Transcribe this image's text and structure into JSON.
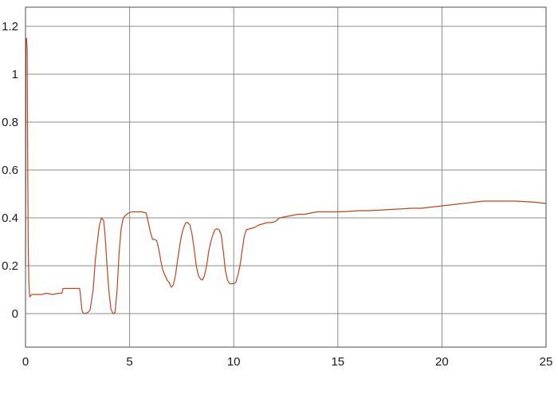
{
  "chart_data": {
    "type": "line",
    "title": "",
    "xlabel": "",
    "ylabel": "",
    "xlim": [
      0,
      25
    ],
    "ylim": [
      -0.14,
      1.28
    ],
    "grid": true,
    "legend": "none",
    "x_ticks": [
      0,
      5,
      10,
      15,
      20,
      25
    ],
    "x_tick_labels": [
      "0",
      "5",
      "10",
      "15",
      "20",
      "25"
    ],
    "y_ticks": [
      0,
      0.2,
      0.4,
      0.6,
      0.8,
      1,
      1.2
    ],
    "y_tick_labels": [
      "0",
      "0.2",
      "0.4",
      "0.6",
      "0.8",
      "1",
      "1.2"
    ],
    "series": [
      {
        "color": "#c0461b",
        "x": [
          0,
          0.02,
          0.05,
          0.08,
          0.1,
          0.13,
          0.16,
          0.2,
          0.3,
          0.5,
          0.8,
          1.0,
          1.3,
          1.6,
          1.75,
          1.8,
          2.0,
          2.3,
          2.6,
          2.65,
          2.7,
          2.75,
          2.85,
          3.0,
          3.1,
          3.25,
          3.35,
          3.45,
          3.55,
          3.65,
          3.75,
          3.82,
          3.9,
          4.0,
          4.1,
          4.2,
          4.3,
          4.4,
          4.5,
          4.6,
          4.7,
          4.8,
          4.95,
          5.1,
          5.25,
          5.4,
          5.6,
          5.8,
          6.0,
          6.1,
          6.2,
          6.3,
          6.4,
          6.5,
          6.6,
          6.7,
          6.8,
          6.9,
          7.0,
          7.1,
          7.2,
          7.3,
          7.4,
          7.5,
          7.6,
          7.7,
          7.8,
          7.9,
          8.0,
          8.1,
          8.2,
          8.3,
          8.4,
          8.5,
          8.6,
          8.7,
          8.8,
          8.9,
          9.0,
          9.1,
          9.2,
          9.3,
          9.4,
          9.5,
          9.6,
          9.7,
          9.8,
          9.9,
          10.0,
          10.1,
          10.2,
          10.3,
          10.4,
          10.5,
          10.6,
          10.8,
          11.0,
          11.2,
          11.4,
          11.6,
          11.8,
          12.0,
          12.2,
          12.5,
          12.8,
          13.1,
          13.4,
          13.7,
          14.0,
          14.5,
          15.0,
          15.5,
          16.0,
          16.5,
          17.0,
          17.5,
          18.0,
          18.5,
          19.0,
          19.5,
          20.0,
          20.5,
          21.0,
          21.5,
          22.0,
          22.5,
          23.0,
          23.5,
          24.0,
          24.5,
          25.0
        ],
        "y": [
          0.2,
          1.14,
          1.15,
          1.1,
          0.7,
          0.3,
          0.13,
          0.07,
          0.08,
          0.08,
          0.08,
          0.085,
          0.08,
          0.085,
          0.085,
          0.105,
          0.105,
          0.105,
          0.105,
          0.07,
          0.02,
          0.005,
          0.0,
          0.005,
          0.015,
          0.1,
          0.22,
          0.3,
          0.37,
          0.4,
          0.39,
          0.33,
          0.22,
          0.1,
          0.02,
          0.0,
          0.005,
          0.1,
          0.26,
          0.36,
          0.4,
          0.41,
          0.42,
          0.425,
          0.425,
          0.425,
          0.425,
          0.42,
          0.34,
          0.31,
          0.31,
          0.305,
          0.27,
          0.22,
          0.18,
          0.16,
          0.14,
          0.13,
          0.11,
          0.12,
          0.16,
          0.22,
          0.28,
          0.33,
          0.36,
          0.38,
          0.38,
          0.37,
          0.33,
          0.27,
          0.2,
          0.16,
          0.145,
          0.14,
          0.16,
          0.2,
          0.26,
          0.3,
          0.33,
          0.35,
          0.355,
          0.35,
          0.33,
          0.26,
          0.18,
          0.14,
          0.125,
          0.125,
          0.125,
          0.13,
          0.16,
          0.2,
          0.26,
          0.32,
          0.35,
          0.355,
          0.36,
          0.37,
          0.375,
          0.38,
          0.38,
          0.385,
          0.4,
          0.405,
          0.41,
          0.415,
          0.415,
          0.42,
          0.425,
          0.425,
          0.425,
          0.427,
          0.43,
          0.43,
          0.432,
          0.435,
          0.437,
          0.44,
          0.44,
          0.445,
          0.45,
          0.455,
          0.46,
          0.465,
          0.47,
          0.47,
          0.47,
          0.47,
          0.468,
          0.465,
          0.46
        ]
      }
    ]
  }
}
